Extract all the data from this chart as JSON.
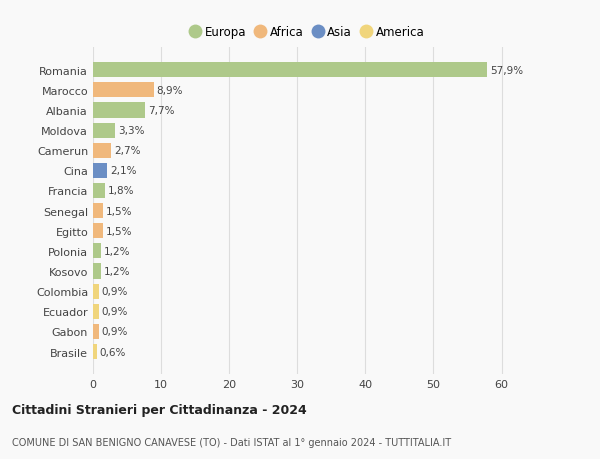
{
  "countries": [
    "Brasile",
    "Gabon",
    "Ecuador",
    "Colombia",
    "Kosovo",
    "Polonia",
    "Egitto",
    "Senegal",
    "Francia",
    "Cina",
    "Camerun",
    "Moldova",
    "Albania",
    "Marocco",
    "Romania"
  ],
  "values": [
    0.6,
    0.9,
    0.9,
    0.9,
    1.2,
    1.2,
    1.5,
    1.5,
    1.8,
    2.1,
    2.7,
    3.3,
    7.7,
    8.9,
    57.9
  ],
  "labels": [
    "0,6%",
    "0,9%",
    "0,9%",
    "0,9%",
    "1,2%",
    "1,2%",
    "1,5%",
    "1,5%",
    "1,8%",
    "2,1%",
    "2,7%",
    "3,3%",
    "7,7%",
    "8,9%",
    "57,9%"
  ],
  "continents": [
    "America",
    "Africa",
    "America",
    "America",
    "Europa",
    "Europa",
    "Africa",
    "Africa",
    "Europa",
    "Asia",
    "Africa",
    "Europa",
    "Europa",
    "Africa",
    "Europa"
  ],
  "colors": {
    "Europa": "#aec98a",
    "Africa": "#f0b87c",
    "Asia": "#6b8ec4",
    "America": "#f0d57c"
  },
  "legend_order": [
    "Europa",
    "Africa",
    "Asia",
    "America"
  ],
  "title1": "Cittadini Stranieri per Cittadinanza - 2024",
  "title2": "COMUNE DI SAN BENIGNO CANAVESE (TO) - Dati ISTAT al 1° gennaio 2024 - TUTTITALIA.IT",
  "xlim": [
    0,
    63
  ],
  "xticks": [
    0,
    10,
    20,
    30,
    40,
    50,
    60
  ],
  "background_color": "#f9f9f9",
  "grid_color": "#dddddd",
  "bar_height": 0.75
}
